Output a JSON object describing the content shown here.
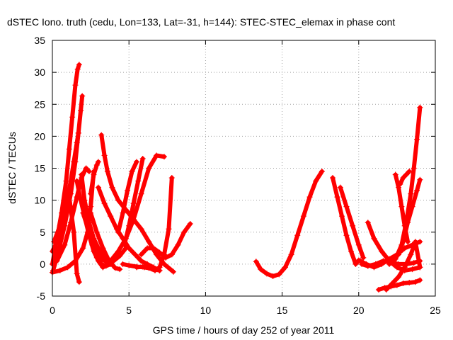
{
  "chart_data": {
    "type": "scatter",
    "title": "dSTEC Iono. truth (cedu, Lon=133, Lat=-31, h=144): STEC-STEC_elemax in phase cont",
    "xlabel": "GPS time / hours of day 252 of year 2011",
    "ylabel": "dSTEC  / TECUs",
    "xlim": [
      0,
      25
    ],
    "ylim": [
      -5,
      35
    ],
    "x_ticks": [
      "0",
      "5",
      "10",
      "15",
      "20",
      "25"
    ],
    "y_ticks": [
      "-5",
      "0",
      "5",
      "10",
      "15",
      "20",
      "25",
      "30",
      "35"
    ],
    "grid": true,
    "marker": "+",
    "color": "#ff0000",
    "series": [
      {
        "x": [
          0.0,
          0.3,
          0.6,
          0.9,
          1.1,
          1.3,
          1.5,
          1.65,
          1.75
        ],
        "y": [
          0.0,
          4.0,
          8.0,
          13.0,
          18.0,
          23.0,
          28.0,
          30.5,
          31.2
        ]
      },
      {
        "x": [
          0.05,
          0.4,
          0.8,
          1.2,
          1.5,
          1.7,
          1.85,
          1.95
        ],
        "y": [
          -1.0,
          2.0,
          6.0,
          11.0,
          16.0,
          20.5,
          24.0,
          26.3
        ]
      },
      {
        "x": [
          0.1,
          0.5,
          0.9,
          1.2,
          1.4,
          1.6,
          1.7
        ],
        "y": [
          3.5,
          6.0,
          9.5,
          13.0,
          16.0,
          19.0,
          20.5
        ]
      },
      {
        "x": [
          0.0,
          0.5,
          1.0,
          1.5,
          2.0,
          2.3,
          2.5,
          2.7
        ],
        "y": [
          -1.3,
          -1.0,
          -0.5,
          0.5,
          2.5,
          5.0,
          9.0,
          14.5
        ]
      },
      {
        "x": [
          0.0,
          0.4,
          0.8,
          1.1,
          1.4,
          1.6,
          1.75
        ],
        "y": [
          2.0,
          4.0,
          7.5,
          10.5,
          5.0,
          -1.5,
          -2.8
        ]
      },
      {
        "x": [
          0.3,
          0.8,
          1.2,
          1.6,
          1.9,
          2.2,
          2.4
        ],
        "y": [
          0.5,
          3.0,
          6.5,
          10.5,
          13.5,
          15.0,
          14.5
        ]
      },
      {
        "x": [
          1.6,
          1.8,
          2.1,
          2.4,
          2.7,
          3.0,
          3.3
        ],
        "y": [
          13.0,
          10.5,
          7.5,
          4.5,
          2.0,
          0.5,
          -0.5
        ]
      },
      {
        "x": [
          1.9,
          2.1,
          2.4,
          2.7,
          3.0,
          3.3,
          3.5
        ],
        "y": [
          14.0,
          10.0,
          6.5,
          4.0,
          2.5,
          1.5,
          1.0
        ]
      },
      {
        "x": [
          2.0,
          2.4,
          2.8,
          3.2,
          3.6,
          4.0,
          4.4,
          4.8
        ],
        "y": [
          8.0,
          5.0,
          2.5,
          0.8,
          0.3,
          0.5,
          1.3,
          2.5
        ]
      },
      {
        "x": [
          2.3,
          2.6,
          2.9,
          3.2,
          3.5,
          3.8
        ],
        "y": [
          6.0,
          3.0,
          1.0,
          0.0,
          -0.3,
          0.0
        ]
      },
      {
        "x": [
          2.5,
          2.7,
          2.9,
          3.0
        ],
        "y": [
          11.0,
          14.0,
          15.5,
          16.0
        ]
      },
      {
        "x": [
          2.5,
          2.9,
          3.3,
          3.7,
          4.1,
          4.4
        ],
        "y": [
          8.0,
          5.0,
          2.5,
          0.5,
          -0.6,
          -0.8
        ]
      },
      {
        "x": [
          3.2,
          3.4,
          3.6,
          3.9,
          4.3,
          4.8,
          5.3,
          5.8,
          6.3,
          6.8,
          7.3,
          7.9
        ],
        "y": [
          20.2,
          17.0,
          14.5,
          12.0,
          10.0,
          8.5,
          7.0,
          5.5,
          3.5,
          1.5,
          0.0,
          -1.2
        ]
      },
      {
        "x": [
          3.0,
          3.4,
          3.8,
          4.2,
          4.6,
          5.0,
          5.4,
          5.8,
          6.2,
          6.6,
          7.0
        ],
        "y": [
          12.0,
          9.5,
          7.5,
          5.5,
          4.0,
          2.5,
          1.5,
          0.5,
          0.0,
          -0.5,
          -1.0
        ]
      },
      {
        "x": [
          3.3,
          3.8,
          4.3,
          4.8,
          5.3,
          5.8,
          6.3,
          6.8,
          7.3
        ],
        "y": [
          -0.5,
          0.5,
          2.0,
          4.0,
          7.0,
          11.0,
          15.0,
          17.0,
          16.8
        ]
      },
      {
        "x": [
          4.3,
          4.6,
          4.9,
          5.2,
          5.5
        ],
        "y": [
          5.0,
          8.0,
          11.5,
          14.5,
          16.0
        ]
      },
      {
        "x": [
          4.7,
          5.0,
          5.3,
          5.6,
          5.9
        ],
        "y": [
          3.0,
          6.0,
          9.5,
          13.0,
          16.5
        ]
      },
      {
        "x": [
          4.6,
          5.0,
          5.5,
          6.0,
          6.5,
          7.0
        ],
        "y": [
          0.0,
          -0.2,
          -0.4,
          -0.5,
          -0.7,
          -1.0
        ]
      },
      {
        "x": [
          5.5,
          5.9,
          6.3,
          6.7,
          7.0,
          7.3,
          7.6,
          7.8
        ],
        "y": [
          -0.5,
          -0.4,
          -0.6,
          -1.0,
          -0.5,
          1.5,
          5.5,
          13.5
        ]
      },
      {
        "x": [
          5.8,
          6.2,
          6.6,
          7.0,
          7.4,
          7.8,
          8.2,
          8.6,
          9.0
        ],
        "y": [
          1.5,
          2.5,
          2.5,
          1.8,
          1.0,
          1.5,
          3.0,
          5.0,
          6.3
        ]
      },
      {
        "x": [
          13.3,
          13.6,
          14.0,
          14.4,
          14.8,
          15.2,
          15.6,
          16.0,
          16.4,
          16.8,
          17.2,
          17.6
        ],
        "y": [
          0.4,
          -0.8,
          -1.5,
          -1.9,
          -1.6,
          -0.5,
          1.5,
          4.5,
          7.5,
          10.5,
          13.0,
          14.5
        ]
      },
      {
        "x": [
          18.3,
          18.6,
          18.9,
          19.2,
          19.5,
          19.8,
          20.0
        ],
        "y": [
          13.5,
          10.5,
          7.5,
          4.5,
          2.0,
          0.0,
          0.6
        ]
      },
      {
        "x": [
          18.8,
          19.2,
          19.6,
          20.0,
          20.3
        ],
        "y": [
          12.0,
          9.0,
          6.0,
          3.0,
          1.0
        ]
      },
      {
        "x": [
          20.1,
          20.5,
          21.0,
          21.5,
          22.0,
          22.5,
          23.0,
          23.5,
          24.0
        ],
        "y": [
          0.5,
          0.0,
          -0.5,
          0.0,
          0.8,
          1.5,
          2.5,
          3.0,
          3.5
        ]
      },
      {
        "x": [
          20.2,
          20.6,
          21.1,
          21.6,
          22.1,
          22.6,
          23.1,
          23.6,
          24.0
        ],
        "y": [
          0.0,
          -0.3,
          0.0,
          0.5,
          0.3,
          0.0,
          0.0,
          0.2,
          0.5
        ]
      },
      {
        "x": [
          20.6,
          21.0,
          21.5,
          22.0,
          22.5,
          23.0,
          23.5,
          24.0
        ],
        "y": [
          6.5,
          4.0,
          2.0,
          0.5,
          -0.5,
          -1.0,
          -0.8,
          -0.5
        ]
      },
      {
        "x": [
          21.3,
          21.7,
          22.1,
          22.5,
          22.9,
          23.3,
          23.7,
          24.0
        ],
        "y": [
          -4.0,
          -3.7,
          -3.5,
          -3.3,
          -3.0,
          -2.9,
          -2.8,
          -2.5
        ]
      },
      {
        "x": [
          21.8,
          22.2,
          22.6,
          23.0,
          23.4,
          23.7,
          24.0
        ],
        "y": [
          -4.0,
          -3.0,
          -2.0,
          -0.5,
          1.5,
          3.5,
          -0.5
        ]
      },
      {
        "x": [
          22.0,
          22.4,
          22.8,
          23.1,
          23.4,
          23.6,
          23.8,
          24.0
        ],
        "y": [
          0.0,
          0.8,
          3.0,
          6.5,
          11.0,
          15.0,
          19.5,
          24.5
        ]
      },
      {
        "x": [
          22.4,
          22.6,
          22.8,
          23.0,
          23.2
        ],
        "y": [
          14.0,
          12.0,
          9.0,
          6.0,
          3.5
        ]
      },
      {
        "x": [
          22.6,
          22.9,
          23.2,
          23.5,
          23.8,
          24.0
        ],
        "y": [
          1.5,
          3.5,
          6.5,
          9.0,
          11.5,
          13.2
        ]
      },
      {
        "x": [
          22.7,
          22.9,
          23.1,
          23.3
        ],
        "y": [
          12.5,
          13.5,
          14.0,
          14.5
        ]
      }
    ]
  }
}
